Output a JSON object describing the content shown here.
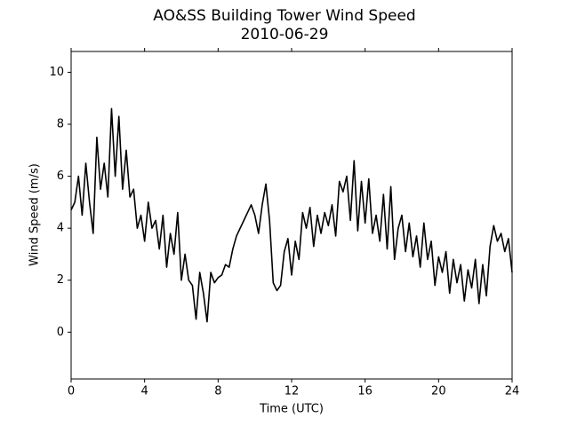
{
  "chart_data": {
    "type": "line",
    "title": "AO&SS Building Tower Wind Speed",
    "subtitle": "2010-06-29",
    "x_label": "Time (UTC)",
    "y_label": "Wind Speed (m/s)",
    "xlim": [
      0,
      24
    ],
    "xticks": [
      0,
      4,
      8,
      12,
      16,
      20,
      24
    ],
    "ylim": [
      -1.8,
      10.8
    ],
    "yticks": [
      0,
      2,
      4,
      6,
      8,
      10
    ],
    "grid": false,
    "series": [
      {
        "name": "Wind Speed",
        "color": "#000000",
        "x": [
          0,
          0.2,
          0.4,
          0.6,
          0.8,
          1,
          1.2,
          1.4,
          1.6,
          1.8,
          2,
          2.2,
          2.4,
          2.6,
          2.8,
          3,
          3.2,
          3.4,
          3.6,
          3.8,
          4,
          4.2,
          4.4,
          4.6,
          4.8,
          5,
          5.2,
          5.4,
          5.6,
          5.8,
          6,
          6.2,
          6.4,
          6.6,
          6.8,
          7,
          7.2,
          7.4,
          7.6,
          7.8,
          8,
          8.2,
          8.4,
          8.6,
          8.8,
          9,
          9.2,
          9.4,
          9.6,
          9.8,
          10,
          10.2,
          10.4,
          10.6,
          10.8,
          11,
          11.2,
          11.4,
          11.6,
          11.8,
          12,
          12.2,
          12.4,
          12.6,
          12.8,
          13,
          13.2,
          13.4,
          13.6,
          13.8,
          14,
          14.2,
          14.4,
          14.6,
          14.8,
          15,
          15.2,
          15.4,
          15.6,
          15.8,
          16,
          16.2,
          16.4,
          16.6,
          16.8,
          17,
          17.2,
          17.4,
          17.6,
          17.8,
          18,
          18.2,
          18.4,
          18.6,
          18.8,
          19,
          19.2,
          19.4,
          19.6,
          19.8,
          20,
          20.2,
          20.4,
          20.6,
          20.8,
          21,
          21.2,
          21.4,
          21.6,
          21.8,
          22,
          22.2,
          22.4,
          22.6,
          22.8,
          23,
          23.2,
          23.4,
          23.6,
          23.8,
          24
        ],
        "values": [
          4.7,
          5,
          6,
          4.5,
          6.5,
          5,
          3.8,
          7.5,
          5.5,
          6.5,
          5.2,
          8.6,
          6,
          8.3,
          5.5,
          7,
          5.2,
          5.5,
          4,
          4.5,
          3.5,
          5,
          4,
          4.3,
          3.2,
          4.5,
          2.5,
          3.8,
          3,
          4.6,
          2,
          3,
          2,
          1.8,
          0.5,
          2.3,
          1.5,
          0.4,
          2.3,
          1.9,
          2.1,
          2.2,
          2.6,
          2.5,
          3.2,
          3.7,
          4,
          4.3,
          4.6,
          4.9,
          4.5,
          3.8,
          4.9,
          5.7,
          4.3,
          1.9,
          1.6,
          1.8,
          3.1,
          3.6,
          2.2,
          3.5,
          2.8,
          4.6,
          4,
          4.8,
          3.3,
          4.5,
          3.8,
          4.6,
          4.1,
          4.9,
          3.7,
          5.8,
          5.4,
          6,
          4.3,
          6.6,
          3.9,
          5.8,
          4.2,
          5.9,
          3.8,
          4.5,
          3.5,
          5.3,
          3.2,
          5.6,
          2.8,
          4,
          4.5,
          3.1,
          4.2,
          2.9,
          3.7,
          2.5,
          4.2,
          2.8,
          3.5,
          1.8,
          2.9,
          2.3,
          3.1,
          1.5,
          2.8,
          1.9,
          2.6,
          1.2,
          2.4,
          1.7,
          2.8,
          1.1,
          2.6,
          1.4,
          3.3,
          4.1,
          3.5,
          3.8,
          3.1,
          3.6,
          2.3
        ]
      }
    ]
  }
}
